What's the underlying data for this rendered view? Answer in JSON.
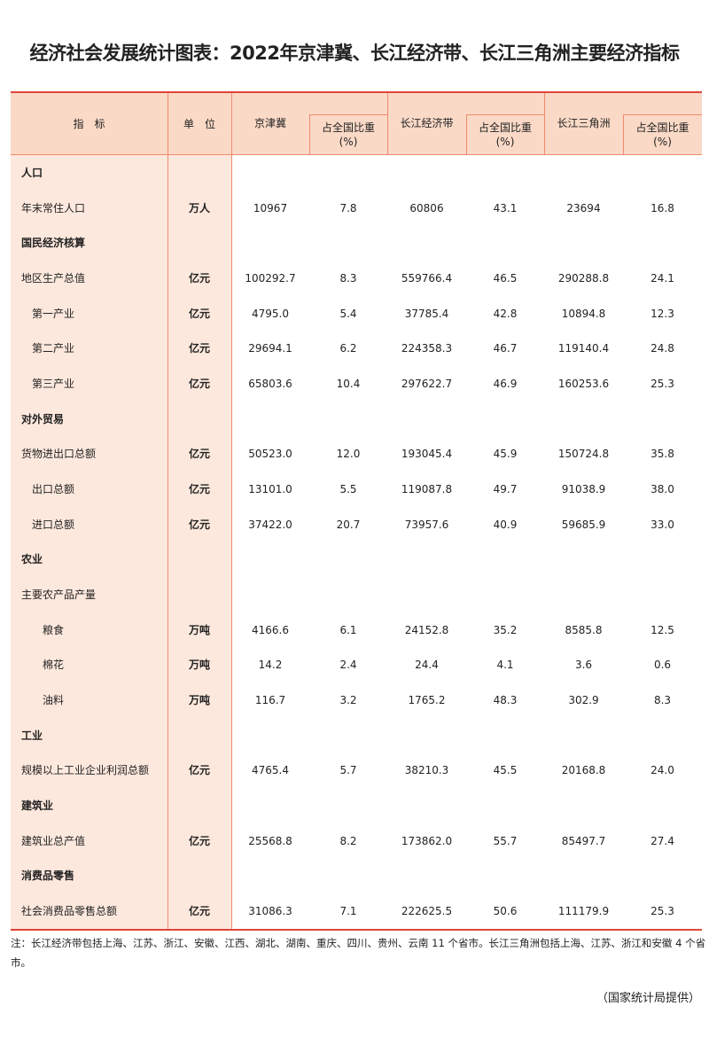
{
  "title": "经济社会发展统计图表：2022年京津冀、长江经济带、长江三角洲主要经济指标",
  "header": {
    "indicator": "指　标",
    "unit": "单　位",
    "region1": "京津冀",
    "region2": "长江经济带",
    "region3": "长江三角洲",
    "share": "占全国比重",
    "share_unit": "(%)"
  },
  "rows": [
    {
      "label": "人口",
      "type": "category"
    },
    {
      "label": "年末常住人口",
      "type": "item",
      "unit": "万人",
      "values": [
        "10967",
        "7.8",
        "60806",
        "43.1",
        "23694",
        "16.8"
      ]
    },
    {
      "label": "国民经济核算",
      "type": "category"
    },
    {
      "label": "地区生产总值",
      "type": "item",
      "unit": "亿元",
      "values": [
        "100292.7",
        "8.3",
        "559766.4",
        "46.5",
        "290288.8",
        "24.1"
      ]
    },
    {
      "label": "第一产业",
      "type": "sub",
      "unit": "亿元",
      "values": [
        "4795.0",
        "5.4",
        "37785.4",
        "42.8",
        "10894.8",
        "12.3"
      ]
    },
    {
      "label": "第二产业",
      "type": "sub",
      "unit": "亿元",
      "values": [
        "29694.1",
        "6.2",
        "224358.3",
        "46.7",
        "119140.4",
        "24.8"
      ]
    },
    {
      "label": "第三产业",
      "type": "sub",
      "unit": "亿元",
      "values": [
        "65803.6",
        "10.4",
        "297622.7",
        "46.9",
        "160253.6",
        "25.3"
      ]
    },
    {
      "label": "对外贸易",
      "type": "category"
    },
    {
      "label": "货物进出口总额",
      "type": "item",
      "unit": "亿元",
      "values": [
        "50523.0",
        "12.0",
        "193045.4",
        "45.9",
        "150724.8",
        "35.8"
      ]
    },
    {
      "label": "出口总额",
      "type": "sub",
      "unit": "亿元",
      "values": [
        "13101.0",
        "5.5",
        "119087.8",
        "49.7",
        "91038.9",
        "38.0"
      ]
    },
    {
      "label": "进口总额",
      "type": "sub",
      "unit": "亿元",
      "values": [
        "37422.0",
        "20.7",
        "73957.6",
        "40.9",
        "59685.9",
        "33.0"
      ]
    },
    {
      "label": "农业",
      "type": "category"
    },
    {
      "label": "主要农产品产量",
      "type": "item"
    },
    {
      "label": "粮食",
      "type": "sub2",
      "unit": "万吨",
      "values": [
        "4166.6",
        "6.1",
        "24152.8",
        "35.2",
        "8585.8",
        "12.5"
      ]
    },
    {
      "label": "棉花",
      "type": "sub2",
      "unit": "万吨",
      "values": [
        "14.2",
        "2.4",
        "24.4",
        "4.1",
        "3.6",
        "0.6"
      ]
    },
    {
      "label": "油料",
      "type": "sub2",
      "unit": "万吨",
      "values": [
        "116.7",
        "3.2",
        "1765.2",
        "48.3",
        "302.9",
        "8.3"
      ]
    },
    {
      "label": "工业",
      "type": "category"
    },
    {
      "label": "规模以上工业企业利润总额",
      "type": "item",
      "unit": "亿元",
      "values": [
        "4765.4",
        "5.7",
        "38210.3",
        "45.5",
        "20168.8",
        "24.0"
      ]
    },
    {
      "label": "建筑业",
      "type": "category"
    },
    {
      "label": "建筑业总产值",
      "type": "item",
      "unit": "亿元",
      "values": [
        "25568.8",
        "8.2",
        "173862.0",
        "55.7",
        "85497.7",
        "27.4"
      ]
    },
    {
      "label": "消费品零售",
      "type": "category"
    },
    {
      "label": "社会消费品零售总额",
      "type": "item",
      "unit": "亿元",
      "values": [
        "31086.3",
        "7.1",
        "222625.5",
        "50.6",
        "111179.9",
        "25.3"
      ]
    }
  ],
  "note": "注：长江经济带包括上海、江苏、浙江、安徽、江西、湖北、湖南、重庆、四川、贵州、云南 11 个省市。长江三角洲包括上海、江苏、浙江和安徽 4 个省市。",
  "source": "（国家统计局提供）",
  "colors": {
    "header_bg": "#fad9c6",
    "left_bg": "#fde8dd",
    "rule": "#e0453a",
    "grid": "#ef8a6e"
  }
}
